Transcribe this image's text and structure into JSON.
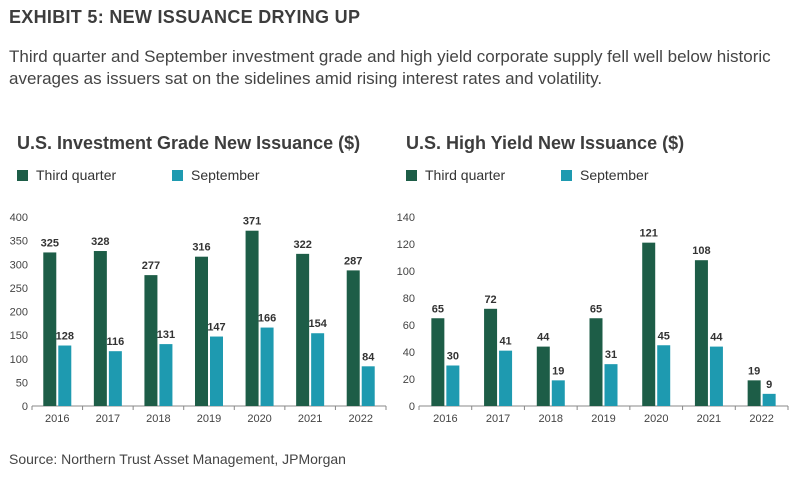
{
  "header": {
    "title": "EXHIBIT 5: NEW ISSUANCE DRYING UP",
    "subtitle": "Third quarter and September investment grade and high yield corporate supply fell well below historic averages as issuers sat on the sidelines amid rising interest rates and volatility."
  },
  "footer": {
    "source": "Source: Northern Trust Asset Management, JPMorgan"
  },
  "colors": {
    "third_quarter": "#1d5d47",
    "september": "#1e9ab0",
    "axis": "#888888",
    "text": "#333333"
  },
  "chart_data": [
    {
      "type": "bar",
      "title": "U.S. Investment Grade New Issuance ($)",
      "categories": [
        "2016",
        "2017",
        "2018",
        "2019",
        "2020",
        "2021",
        "2022"
      ],
      "series": [
        {
          "name": "Third quarter",
          "values": [
            325,
            328,
            277,
            316,
            371,
            322,
            287
          ]
        },
        {
          "name": "September",
          "values": [
            128,
            116,
            131,
            147,
            166,
            154,
            84
          ]
        }
      ],
      "yticks": [
        0,
        50,
        100,
        150,
        200,
        250,
        300,
        350,
        400
      ],
      "ylim": [
        0,
        400
      ],
      "legend": "top",
      "grid": false
    },
    {
      "type": "bar",
      "title": "U.S. High Yield New Issuance ($)",
      "categories": [
        "2016",
        "2017",
        "2018",
        "2019",
        "2020",
        "2021",
        "2022"
      ],
      "series": [
        {
          "name": "Third quarter",
          "values": [
            65,
            72,
            44,
            65,
            121,
            108,
            19
          ]
        },
        {
          "name": "September",
          "values": [
            30,
            41,
            19,
            31,
            45,
            44,
            9
          ]
        }
      ],
      "yticks": [
        0,
        20,
        40,
        60,
        80,
        100,
        120,
        140
      ],
      "ylim": [
        0,
        140
      ],
      "legend": "top",
      "grid": false
    }
  ]
}
